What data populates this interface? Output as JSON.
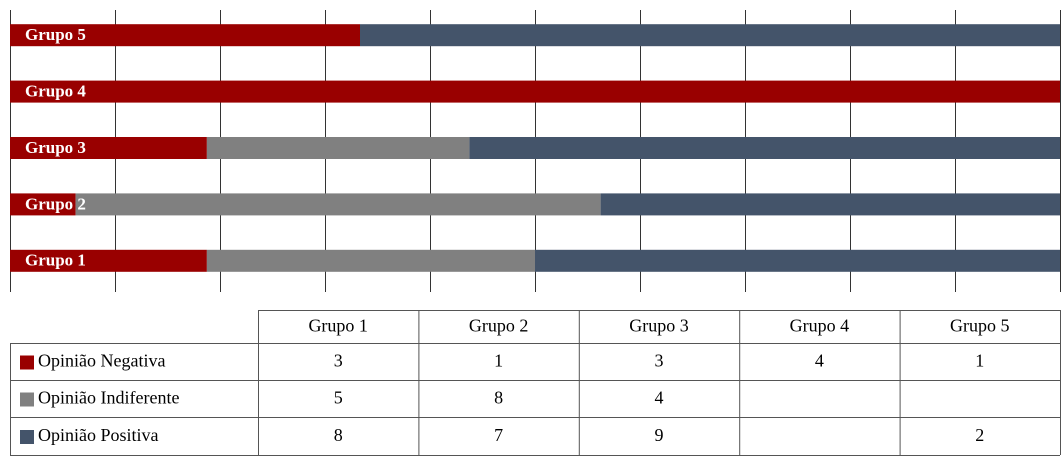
{
  "chart_data": {
    "type": "bar",
    "orientation": "horizontal",
    "stack": "percent",
    "categories": [
      "Grupo 1",
      "Grupo 2",
      "Grupo 3",
      "Grupo 4",
      "Grupo 5"
    ],
    "series": [
      {
        "name": "Opinião Negativa",
        "color": "#990000",
        "values": [
          3,
          1,
          3,
          4,
          1
        ]
      },
      {
        "name": "Opinião Indiferente",
        "color": "#808080",
        "values": [
          5,
          8,
          4,
          null,
          null
        ]
      },
      {
        "name": "Opinião Positiva",
        "color": "#44546a",
        "values": [
          8,
          7,
          9,
          null,
          2
        ]
      }
    ],
    "xlim": [
      0,
      100
    ],
    "xticks": [
      0,
      10,
      20,
      30,
      40,
      50,
      60,
      70,
      80,
      90,
      100
    ],
    "grid": true,
    "data_table": true
  }
}
